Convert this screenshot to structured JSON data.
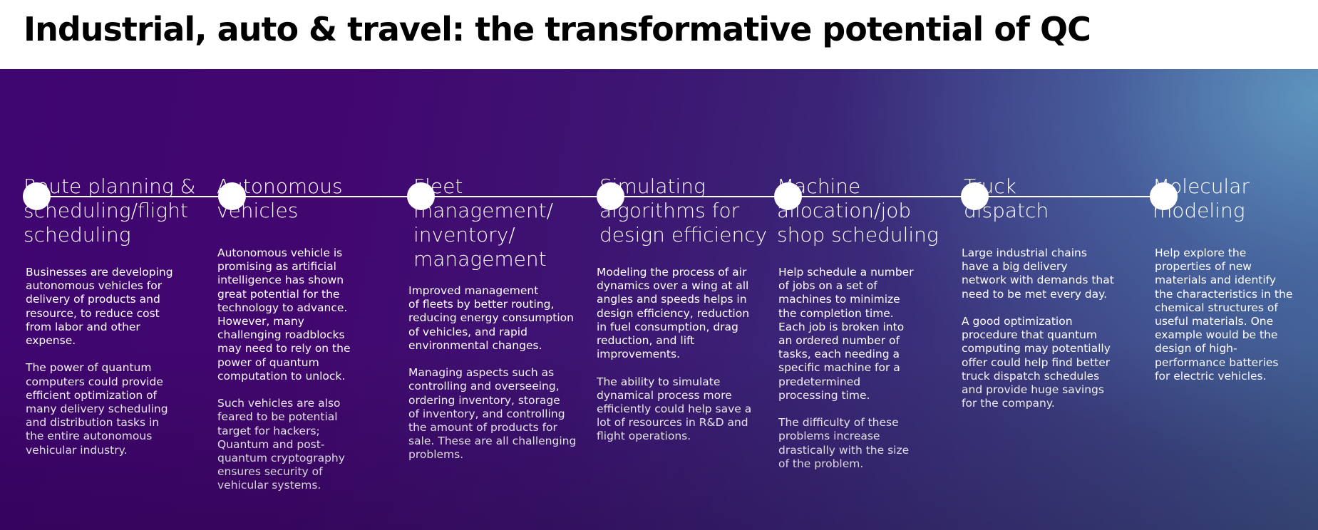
{
  "header": {
    "title": "Industrial, auto & travel: the transformative potential of QC"
  },
  "colors": {
    "panel_start": "#3f0570",
    "panel_end": "#5b87ad",
    "text": "#ffffff"
  },
  "columns": [
    {
      "title": "Route planning &\nscheduling/flight\nscheduling",
      "body": "Businesses are developing\nautonomous vehicles for\ndelivery of products and\nresource, to reduce cost\nfrom labor and other\nexpense.\n\nThe power of quantum\ncomputers could provide\nefficient optimization of\nmany delivery scheduling\nand distribution tasks in\nthe entire autonomous\nvehicular industry."
    },
    {
      "title": "Autonomous\nvehicles",
      "body": "Autonomous vehicle is\npromising as artificial\nintelligence has shown\ngreat potential for the\ntechnology to advance.\nHowever, many\nchallenging roadblocks\nmay need to rely on the\npower of quantum\ncomputation to unlock.\n\nSuch vehicles are also\nfeared to be potential\ntarget for hackers;\nQuantum and post-\nquantum cryptography\nensures security of\nvehicular systems."
    },
    {
      "title": "Fleet\nmanagement/\ninventory/\nmanagement",
      "body": "Improved management\nof fleets by better routing,\nreducing energy consumption\nof vehicles, and rapid\nenvironmental changes.\n\nManaging aspects such as\ncontrolling and overseeing,\nordering inventory, storage\nof inventory, and controlling\nthe amount of products for\nsale. These are all challenging\nproblems."
    },
    {
      "title": "Simulating\nalgorithms for\ndesign efficiency",
      "body": "Modeling the process of air\ndynamics over a wing at all\nangles and speeds helps in\ndesign efficiency, reduction\nin fuel consumption, drag\nreduction, and lift\nimprovements.\n\nThe ability to simulate\ndynamical process more\nefficiently could help save a\nlot of resources in R&D and\nflight operations."
    },
    {
      "title": "Machine\nallocation/job\nshop scheduling",
      "body": "Help schedule a number\nof jobs on a set of\nmachines to minimize\nthe completion time.\nEach job is broken into\nan ordered number of\ntasks, each needing a\nspecific machine for a\npredetermined\nprocessing time.\n\nThe difficulty of these\nproblems increase\ndrastically with the size\nof the problem."
    },
    {
      "title": "Truck\ndispatch",
      "body": "Large industrial chains\nhave a big delivery\nnetwork with demands that\nneed to be met every day.\n\nA good optimization\nprocedure that quantum\ncomputing may potentially\noffer could help find better\ntruck dispatch schedules\nand provide huge savings\nfor the company."
    },
    {
      "title": "Molecular\nmodeling",
      "body": "Help explore the\nproperties of new\nmaterials and identify\nthe characteristics in the\nchemical structures of\nuseful materials. One\nexample would be the\ndesign of high-\nperformance batteries\nfor electric vehicles."
    }
  ]
}
